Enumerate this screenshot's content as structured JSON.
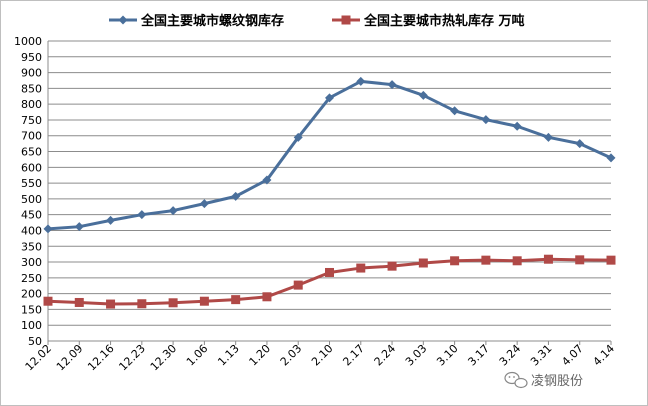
{
  "chart_data": {
    "type": "line",
    "categories": [
      "12.02",
      "12.09",
      "12.16",
      "12.23",
      "12.30",
      "1.06",
      "1.13",
      "1.20",
      "2.03",
      "2.10",
      "2.17",
      "2.24",
      "3.03",
      "3.10",
      "3.17",
      "3.24",
      "3.31",
      "4.07",
      "4.14"
    ],
    "series": [
      {
        "name": "全国主要城市螺纹钢库存",
        "color": "#4a6f9b",
        "marker": "diamond",
        "values": [
          405,
          412,
          432,
          450,
          463,
          485,
          508,
          560,
          695,
          820,
          872,
          862,
          828,
          779,
          751,
          730,
          695,
          675,
          630
        ]
      },
      {
        "name": "全国主要城市热轧库存 万吨",
        "color": "#b04947",
        "marker": "square",
        "values": [
          176,
          172,
          167,
          168,
          171,
          176,
          181,
          190,
          227,
          267,
          281,
          287,
          297,
          304,
          306,
          304,
          309,
          307,
          306
        ]
      }
    ],
    "y_ticks": [
      50,
      100,
      150,
      200,
      250,
      300,
      350,
      400,
      450,
      500,
      550,
      600,
      650,
      700,
      750,
      800,
      850,
      900,
      950,
      1000
    ],
    "ylim": [
      50,
      1000
    ],
    "grid": "horizontal",
    "legend_position": "top",
    "xlabel": "",
    "ylabel": ""
  },
  "watermark": {
    "text": "凌钢股份"
  }
}
